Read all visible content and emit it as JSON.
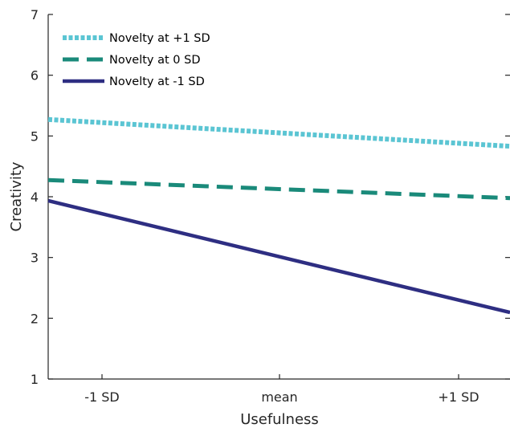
{
  "chart_data": {
    "type": "line",
    "x": [
      "-1 SD",
      "mean",
      "+1 SD"
    ],
    "xlabel": "Usefulness",
    "ylabel": "Creativity",
    "ylim": [
      1,
      7
    ],
    "yticks": [
      1,
      2,
      3,
      4,
      5,
      6,
      7
    ],
    "grid": false,
    "legend_position": "top-left",
    "series": [
      {
        "name": "Novelty at +1 SD",
        "values": [
          5.22,
          5.05,
          4.88
        ],
        "color": "#5bc5d3",
        "dash": "dotted"
      },
      {
        "name": "Novelty at 0 SD",
        "values": [
          4.24,
          4.12,
          4.01
        ],
        "color": "#1a8a7a",
        "dash": "dashed"
      },
      {
        "name": "Novelty at -1 SD",
        "values": [
          3.72,
          3.02,
          2.3
        ],
        "color": "#2e2e82",
        "dash": "solid"
      }
    ]
  }
}
